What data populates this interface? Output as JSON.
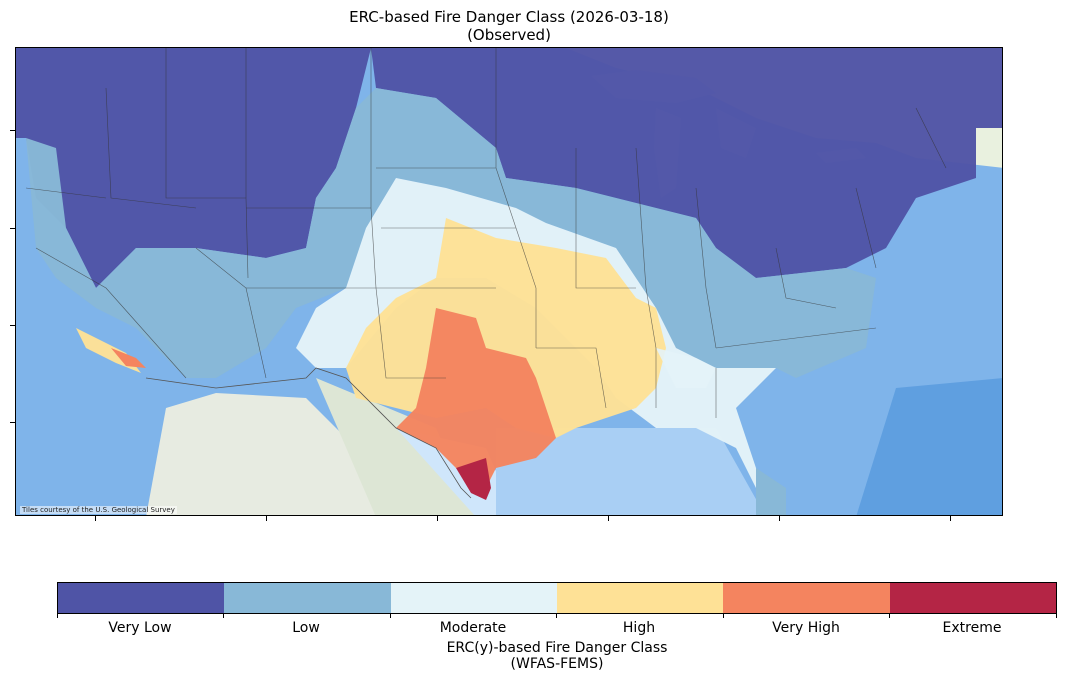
{
  "title": {
    "line1": "ERC-based Fire Danger Class (2026-03-18)",
    "line2": "(Observed)"
  },
  "map": {
    "attribution": "Tiles courtesy of the U.S. Geological Survey",
    "basemap_colors": {
      "ocean": "#7fb4ea",
      "ocean_light": "#cfe6fb",
      "land": "#eef0ea"
    }
  },
  "legend": {
    "title_line1": "ERC(y)-based Fire Danger Class",
    "title_line2": "(WFAS-FEMS)",
    "classes": [
      {
        "label": "Very Low",
        "color": "#4f54a6"
      },
      {
        "label": "Low",
        "color": "#88b8d7"
      },
      {
        "label": "Moderate",
        "color": "#e4f3f8"
      },
      {
        "label": "High",
        "color": "#fee196"
      },
      {
        "label": "Very High",
        "color": "#f4845f"
      },
      {
        "label": "Extreme",
        "color": "#b42545"
      }
    ]
  }
}
